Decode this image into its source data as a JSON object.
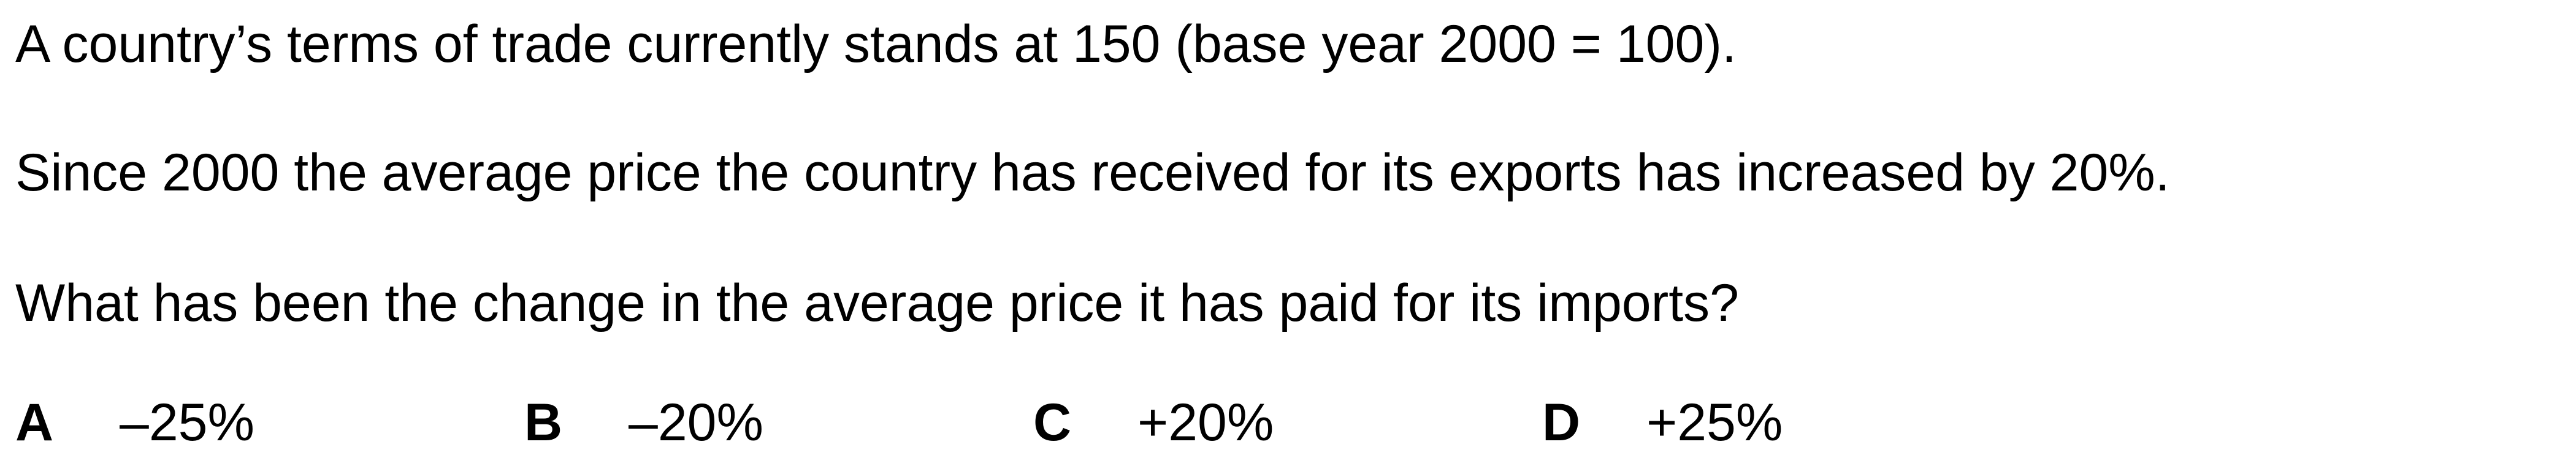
{
  "question": {
    "line1": "A country’s terms of trade currently stands at 150 (base year 2000 = 100).",
    "line2": "Since 2000 the average price the country has received for its exports has increased by 20%.",
    "line3": "What has been the change in the average price it has paid for its imports?"
  },
  "options": [
    {
      "letter": "A",
      "value": "–25%"
    },
    {
      "letter": "B",
      "value": "–20%"
    },
    {
      "letter": "C",
      "value": "+20%"
    },
    {
      "letter": "D",
      "value": "+25%"
    }
  ]
}
